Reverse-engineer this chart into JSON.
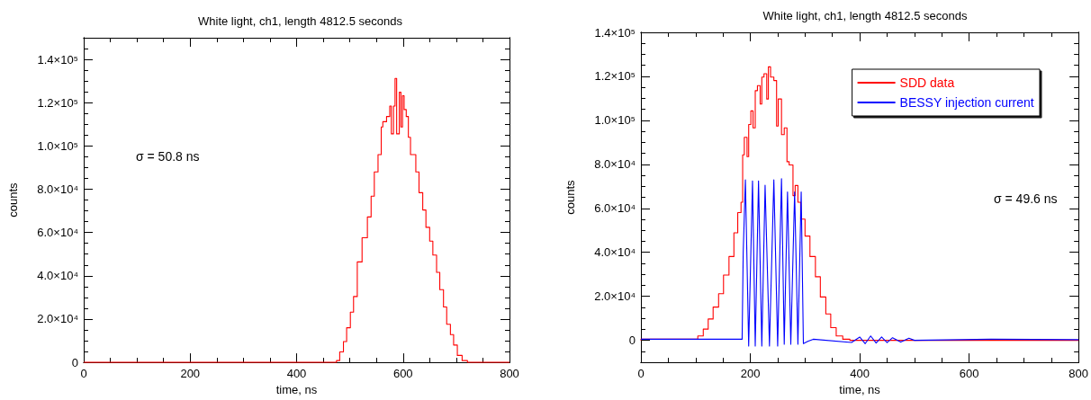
{
  "chart_data": [
    {
      "type": "step",
      "title": "White light, ch1, length 4812.5 seconds",
      "xlabel": "time, ns",
      "ylabel": "counts",
      "xlim": [
        0,
        800
      ],
      "ylim": [
        0,
        150000
      ],
      "xticks": [
        0,
        {
          "value": 50,
          "label": null
        },
        {
          "value": 100,
          "label": null
        },
        {
          "value": 150,
          "label": null
        },
        200,
        {
          "value": 250,
          "label": null
        },
        {
          "value": 300,
          "label": null
        },
        {
          "value": 350,
          "label": null
        },
        400,
        {
          "value": 450,
          "label": null
        },
        {
          "value": 500,
          "label": null
        },
        {
          "value": 550,
          "label": null
        },
        600,
        {
          "value": 650,
          "label": null
        },
        {
          "value": 700,
          "label": null
        },
        {
          "value": 750,
          "label": null
        },
        800
      ],
      "yticks": [
        0,
        {
          "value": 5000,
          "label": null
        },
        {
          "value": 10000,
          "label": null
        },
        {
          "value": 15000,
          "label": null
        },
        {
          "value": 20000,
          "label": "2.0×10⁴"
        },
        {
          "value": 25000,
          "label": null
        },
        {
          "value": 30000,
          "label": null
        },
        {
          "value": 35000,
          "label": null
        },
        {
          "value": 40000,
          "label": "4.0×10⁴"
        },
        {
          "value": 45000,
          "label": null
        },
        {
          "value": 50000,
          "label": null
        },
        {
          "value": 55000,
          "label": null
        },
        {
          "value": 60000,
          "label": "6.0×10⁴"
        },
        {
          "value": 65000,
          "label": null
        },
        {
          "value": 70000,
          "label": null
        },
        {
          "value": 75000,
          "label": null
        },
        {
          "value": 80000,
          "label": "8.0×10⁴"
        },
        {
          "value": 85000,
          "label": null
        },
        {
          "value": 90000,
          "label": null
        },
        {
          "value": 95000,
          "label": null
        },
        {
          "value": 100000,
          "label": "1.0×10⁵"
        },
        {
          "value": 105000,
          "label": null
        },
        {
          "value": 110000,
          "label": null
        },
        {
          "value": 115000,
          "label": null
        },
        {
          "value": 120000,
          "label": "1.2×10⁵"
        },
        {
          "value": 125000,
          "label": null
        },
        {
          "value": 130000,
          "label": null
        },
        {
          "value": 135000,
          "label": null
        },
        {
          "value": 140000,
          "label": "1.4×10⁵"
        },
        {
          "value": 145000,
          "label": null
        }
      ],
      "annotations": [
        "σ = 50.8 ns"
      ],
      "series": [
        {
          "color": "#ff0000",
          "x": [
            0,
            475,
            481,
            488,
            494,
            501,
            507,
            514,
            523,
            533,
            540,
            546,
            553,
            559,
            562,
            569,
            575,
            578,
            582,
            585,
            588,
            593,
            596,
            599,
            602,
            606,
            610,
            614,
            619,
            624,
            630,
            637,
            643,
            650,
            656,
            663,
            669,
            676,
            682,
            689,
            695,
            702,
            711,
            721,
            737,
            800
          ],
          "values": [
            0,
            0,
            800,
            4800,
            9600,
            16000,
            23200,
            30400,
            46400,
            57600,
            67200,
            76800,
            88000,
            96000,
            108800,
            111200,
            113600,
            118400,
            105600,
            118400,
            131200,
            105600,
            124800,
            108800,
            123200,
            116800,
            113600,
            104000,
            96000,
            96000,
            88000,
            78400,
            70400,
            62400,
            56000,
            49600,
            41600,
            33600,
            25600,
            17600,
            12800,
            8000,
            3200,
            800,
            0,
            0
          ]
        }
      ]
    },
    {
      "type": "step",
      "title": "White light, ch1, length 4812.5 seconds",
      "xlabel": "time, ns",
      "ylabel": "counts",
      "xlim": [
        0,
        800
      ],
      "ylim": [
        -10000,
        140000
      ],
      "legend": "top right",
      "xticks": [
        0,
        {
          "value": 50,
          "label": null
        },
        {
          "value": 100,
          "label": null
        },
        {
          "value": 150,
          "label": null
        },
        200,
        {
          "value": 250,
          "label": null
        },
        {
          "value": 300,
          "label": null
        },
        {
          "value": 350,
          "label": null
        },
        400,
        {
          "value": 450,
          "label": null
        },
        {
          "value": 500,
          "label": null
        },
        {
          "value": 550,
          "label": null
        },
        600,
        {
          "value": 650,
          "label": null
        },
        {
          "value": 700,
          "label": null
        },
        {
          "value": 750,
          "label": null
        },
        800
      ],
      "yticks": [
        {
          "value": -5000,
          "label": null
        },
        0,
        {
          "value": 5000,
          "label": null
        },
        {
          "value": 10000,
          "label": null
        },
        {
          "value": 15000,
          "label": null
        },
        {
          "value": 20000,
          "label": "2.0×10⁴"
        },
        {
          "value": 25000,
          "label": null
        },
        {
          "value": 30000,
          "label": null
        },
        {
          "value": 35000,
          "label": null
        },
        {
          "value": 40000,
          "label": "4.0×10⁴"
        },
        {
          "value": 45000,
          "label": null
        },
        {
          "value": 50000,
          "label": null
        },
        {
          "value": 55000,
          "label": null
        },
        {
          "value": 60000,
          "label": "6.0×10⁴"
        },
        {
          "value": 65000,
          "label": null
        },
        {
          "value": 70000,
          "label": null
        },
        {
          "value": 75000,
          "label": null
        },
        {
          "value": 80000,
          "label": "8.0×10⁴"
        },
        {
          "value": 85000,
          "label": null
        },
        {
          "value": 90000,
          "label": null
        },
        {
          "value": 95000,
          "label": null
        },
        {
          "value": 100000,
          "label": "1.0×10⁵"
        },
        {
          "value": 105000,
          "label": null
        },
        {
          "value": 110000,
          "label": null
        },
        {
          "value": 115000,
          "label": null
        },
        {
          "value": 120000,
          "label": "1.2×10⁵"
        },
        {
          "value": 125000,
          "label": null
        },
        {
          "value": 130000,
          "label": null
        },
        {
          "value": 135000,
          "label": null
        },
        {
          "value": 140000,
          "label": "1.4×10⁵"
        }
      ],
      "annotations": [
        "σ = 49.6 ns"
      ],
      "series": [
        {
          "name": "SDD data",
          "color": "#ff0000",
          "x": [
            0,
            104,
            114,
            123,
            132,
            142,
            151,
            161,
            170,
            177,
            183,
            186,
            189,
            194,
            197,
            201,
            205,
            209,
            213,
            218,
            221,
            225,
            230,
            233,
            237,
            243,
            248,
            251,
            257,
            262,
            267,
            271,
            278,
            282,
            287,
            292,
            300,
            309,
            319,
            328,
            338,
            347,
            357,
            369,
            382,
            401,
            800
          ],
          "values": [
            0,
            500,
            2000,
            5100,
            9700,
            15100,
            21200,
            29700,
            38100,
            48900,
            58100,
            62800,
            84300,
            92300,
            83500,
            98100,
            104300,
            96600,
            113500,
            115800,
            107400,
            119700,
            121200,
            109700,
            124300,
            119700,
            118100,
            97400,
            109700,
            93500,
            96600,
            81200,
            79700,
            65800,
            70400,
            62800,
            55100,
            47400,
            38100,
            28900,
            19700,
            12000,
            5800,
            2000,
            500,
            0,
            0
          ]
        },
        {
          "name": "BESSY injection current",
          "type": "line",
          "color": "#0000ff",
          "x": [
            0,
            185,
            187,
            191,
            197,
            204,
            209,
            215,
            221,
            227,
            235,
            243,
            250,
            257,
            262,
            268,
            274,
            281,
            287,
            293,
            297,
            305,
            315,
            385,
            400,
            410,
            420,
            430,
            440,
            450,
            460,
            475,
            490,
            500,
            640,
            800
          ],
          "values": [
            500,
            500,
            40000,
            73000,
            -2600,
            72500,
            -2600,
            72500,
            -2600,
            70500,
            -2600,
            73000,
            -2600,
            73500,
            -1800,
            67500,
            -1800,
            67500,
            -1800,
            67500,
            -1500,
            -500,
            500,
            -1000,
            1500,
            -1500,
            2000,
            -1200,
            1500,
            -1000,
            1200,
            -800,
            1000,
            0,
            500,
            300
          ]
        }
      ]
    }
  ]
}
